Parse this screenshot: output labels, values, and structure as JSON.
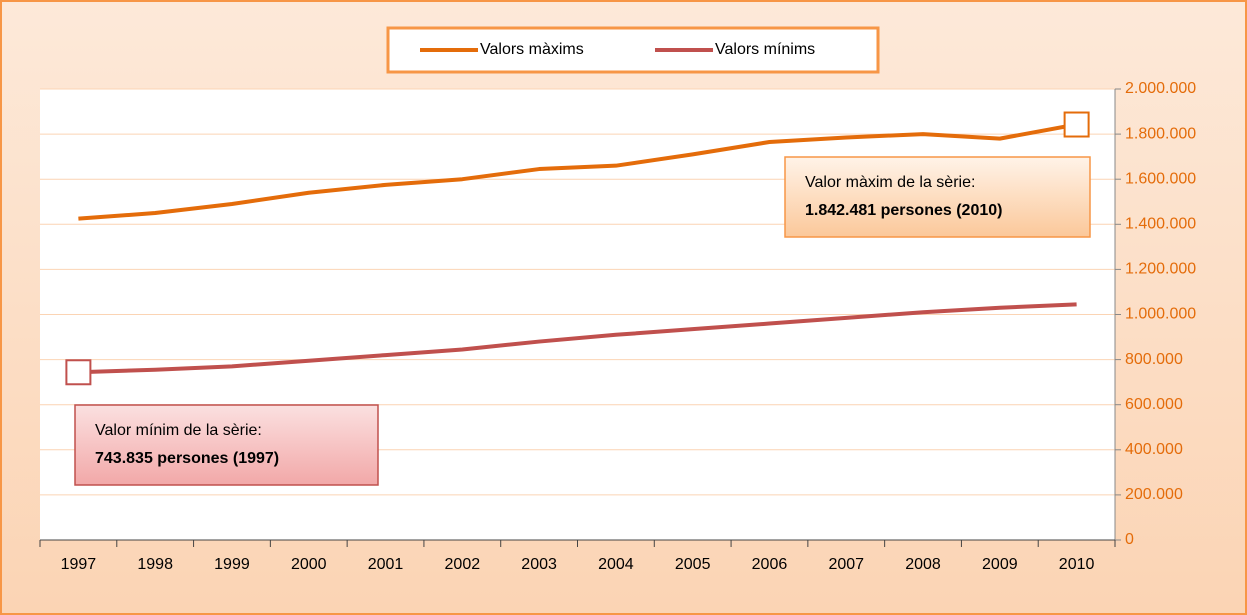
{
  "chart_data": {
    "type": "line",
    "categories": [
      "1997",
      "1998",
      "1999",
      "2000",
      "2001",
      "2002",
      "2003",
      "2004",
      "2005",
      "2006",
      "2007",
      "2008",
      "2009",
      "2010"
    ],
    "series": [
      {
        "name": "Valors màxims",
        "color": "#e46c0a",
        "values": [
          1425000,
          1450000,
          1490000,
          1540000,
          1575000,
          1600000,
          1645000,
          1660000,
          1710000,
          1765000,
          1785000,
          1800000,
          1780000,
          1842481
        ]
      },
      {
        "name": "Valors mínims",
        "color": "#c0504d",
        "values": [
          743835,
          755000,
          770000,
          795000,
          820000,
          845000,
          880000,
          910000,
          935000,
          960000,
          985000,
          1010000,
          1030000,
          1045000
        ]
      }
    ],
    "ylim": [
      0,
      2000000
    ],
    "yticks": [
      0,
      {
        "value": 200000,
        "label": "200.000"
      },
      {
        "value": 400000,
        "label": "400.000"
      },
      {
        "value": 600000,
        "label": "600.000"
      },
      {
        "value": 800000,
        "label": "800.000"
      },
      {
        "value": 1000000,
        "label": "1.000.000"
      },
      {
        "value": 1200000,
        "label": "1.200.000"
      },
      {
        "value": 1400000,
        "label": "1.400.000"
      },
      {
        "value": 1600000,
        "label": "1.600.000"
      },
      {
        "value": 1800000,
        "label": "1.800.000"
      },
      {
        "value": 2000000,
        "label": "2.000.000"
      }
    ],
    "grid": true,
    "legend": "top",
    "annotations": [
      {
        "text": "Valor màxim de la sèrie:",
        "bold": "1.842.481 persones (2010)",
        "series": 0,
        "index": 13
      },
      {
        "text": "Valor mínim de la sèrie:",
        "bold": "743.835 persones (1997)",
        "series": 1,
        "index": 0
      }
    ]
  }
}
